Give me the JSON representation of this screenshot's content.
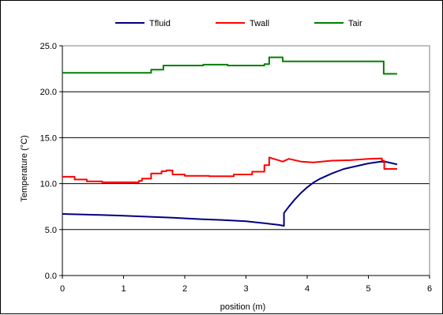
{
  "chart_data": {
    "type": "line",
    "title": "",
    "xlabel": "position (m)",
    "ylabel": "Temperature (°C)",
    "xlim": [
      0,
      6
    ],
    "ylim": [
      0,
      25
    ],
    "xticks": [
      0,
      1,
      2,
      3,
      4,
      5,
      6
    ],
    "yticks": [
      0,
      5,
      10,
      15,
      20,
      25
    ],
    "xtick_labels": [
      "0",
      "1",
      "2",
      "3",
      "4",
      "5",
      "6"
    ],
    "ytick_labels": [
      "0.0",
      "5.0",
      "10.0",
      "15.0",
      "20.0",
      "25.0"
    ],
    "grid": "horizontal",
    "legend_position": "top",
    "series": [
      {
        "name": "Tfluid",
        "color": "#000080",
        "x": [
          0,
          0.3,
          0.6,
          1.0,
          1.4,
          1.8,
          2.2,
          2.6,
          3.0,
          3.3,
          3.55,
          3.62,
          3.62,
          3.7,
          3.8,
          3.9,
          4.0,
          4.1,
          4.2,
          4.4,
          4.6,
          4.8,
          5.0,
          5.2,
          5.3,
          5.4,
          5.47
        ],
        "y": [
          6.7,
          6.65,
          6.6,
          6.5,
          6.4,
          6.3,
          6.15,
          6.05,
          5.9,
          5.7,
          5.5,
          5.4,
          6.8,
          7.5,
          8.3,
          9.0,
          9.6,
          10.1,
          10.5,
          11.1,
          11.6,
          11.9,
          12.2,
          12.4,
          12.35,
          12.2,
          12.1
        ]
      },
      {
        "name": "Twall",
        "color": "#ff0000",
        "x": [
          0,
          0.2,
          0.2,
          0.4,
          0.4,
          0.65,
          0.65,
          1.25,
          1.25,
          1.3,
          1.3,
          1.45,
          1.45,
          1.62,
          1.62,
          1.7,
          1.7,
          1.8,
          1.8,
          2.0,
          2.0,
          2.4,
          2.4,
          2.8,
          2.8,
          3.1,
          3.1,
          3.3,
          3.3,
          3.38,
          3.38,
          3.5,
          3.6,
          3.7,
          3.9,
          4.1,
          4.4,
          4.7,
          5.0,
          5.22,
          5.22,
          5.26,
          5.26,
          5.47
        ],
        "y": [
          10.75,
          10.75,
          10.45,
          10.45,
          10.25,
          10.25,
          10.15,
          10.15,
          10.3,
          10.3,
          10.55,
          10.55,
          11.1,
          11.1,
          11.35,
          11.35,
          11.45,
          11.45,
          11.0,
          11.0,
          10.85,
          10.85,
          10.8,
          10.8,
          11.0,
          11.0,
          11.3,
          11.3,
          12.0,
          12.0,
          12.85,
          12.6,
          12.4,
          12.7,
          12.4,
          12.3,
          12.5,
          12.55,
          12.7,
          12.75,
          12.5,
          12.5,
          11.6,
          11.6
        ]
      },
      {
        "name": "Tair",
        "color": "#008000",
        "x": [
          0,
          1.45,
          1.45,
          1.65,
          1.65,
          2.3,
          2.3,
          2.7,
          2.7,
          3.3,
          3.3,
          3.38,
          3.38,
          3.6,
          3.6,
          5.25,
          5.25,
          5.47
        ],
        "y": [
          22.05,
          22.05,
          22.4,
          22.4,
          22.85,
          22.85,
          22.95,
          22.95,
          22.85,
          22.85,
          23.0,
          23.0,
          23.75,
          23.75,
          23.3,
          23.3,
          21.95,
          21.95
        ]
      }
    ]
  }
}
